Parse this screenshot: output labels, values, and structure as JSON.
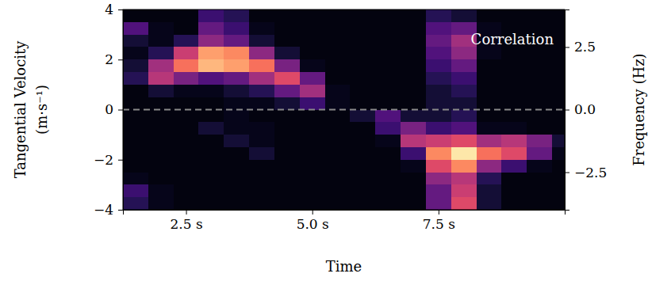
{
  "chart_data": {
    "type": "heatmap",
    "x_label": "Time",
    "y_label": "Tangential Velocity (m·s⁻¹)",
    "y2_label": "Frequency (Hz)",
    "annotations": [
      "Correlation"
    ],
    "color": "magma",
    "zlim": [
      0,
      1
    ],
    "xlim": [
      1.25,
      10
    ],
    "ylim": [
      -4,
      4
    ],
    "xticks": [
      {
        "value": 2.5,
        "label": "2.5 s"
      },
      {
        "value": 5,
        "label": "5.0 s"
      },
      {
        "value": 7.5,
        "label": "7.5 s"
      }
    ],
    "yticks": [
      {
        "value": -4,
        "label": "−4"
      },
      {
        "value": -2,
        "label": "−2"
      },
      0,
      2,
      4
    ],
    "y2lim": [
      -4,
      4
    ],
    "y2ticks": [
      {
        "value": -2.5,
        "label": "−2.5"
      },
      {
        "value": 0,
        "label": "0.0"
      },
      2.5
    ],
    "hlines": [
      0
    ],
    "x": [
      1.25,
      1.75,
      2.25,
      2.75,
      3.25,
      3.75,
      4.25,
      4.75,
      5.25,
      5.75,
      6.25,
      6.75,
      7.25,
      7.75,
      8.25,
      8.75,
      9.25,
      9.75,
      10
    ],
    "y": [
      4,
      3.5,
      3,
      2.5,
      2,
      1.5,
      1,
      0.5,
      0,
      -0.5,
      -1,
      -1.5,
      -2,
      -2.5,
      -3,
      -3.5,
      -4
    ],
    "cells": [
      [
        0.03,
        0.03,
        0.03,
        0.2,
        0.15,
        0.03,
        0.03,
        0.03,
        0.03,
        0.03,
        0.03,
        0.03,
        0.15,
        0.1,
        0.03,
        0.03,
        0.03,
        0.03
      ],
      [
        0.25,
        0.05,
        0.03,
        0.3,
        0.2,
        0.05,
        0.03,
        0.03,
        0.03,
        0.03,
        0.03,
        0.03,
        0.25,
        0.3,
        0.05,
        0.03,
        0.03,
        0.03
      ],
      [
        0.1,
        0.05,
        0.15,
        0.4,
        0.3,
        0.1,
        0.03,
        0.03,
        0.03,
        0.03,
        0.03,
        0.03,
        0.3,
        0.45,
        0.05,
        0.03,
        0.03,
        0.03
      ],
      [
        0.05,
        0.15,
        0.55,
        0.8,
        0.75,
        0.4,
        0.1,
        0.03,
        0.03,
        0.03,
        0.03,
        0.03,
        0.25,
        0.4,
        0.05,
        0.03,
        0.03,
        0.03
      ],
      [
        0.1,
        0.45,
        0.7,
        0.85,
        0.8,
        0.7,
        0.35,
        0.05,
        0.03,
        0.03,
        0.03,
        0.03,
        0.2,
        0.3,
        0.03,
        0.03,
        0.03,
        0.03
      ],
      [
        0.15,
        0.5,
        0.35,
        0.25,
        0.3,
        0.45,
        0.6,
        0.3,
        0.03,
        0.03,
        0.03,
        0.03,
        0.15,
        0.2,
        0.03,
        0.03,
        0.03,
        0.03
      ],
      [
        0.03,
        0.1,
        0.05,
        0.05,
        0.1,
        0.15,
        0.3,
        0.45,
        0.05,
        0.03,
        0.03,
        0.03,
        0.1,
        0.15,
        0.03,
        0.03,
        0.03,
        0.03
      ],
      [
        0.03,
        0.03,
        0.03,
        0.03,
        0.05,
        0.05,
        0.1,
        0.2,
        0.05,
        0.03,
        0.03,
        0.03,
        0.1,
        0.1,
        0.03,
        0.03,
        0.03,
        0.03
      ],
      [
        0.03,
        0.03,
        0.03,
        0.03,
        0.05,
        0.03,
        0.03,
        0.03,
        0.03,
        0.1,
        0.25,
        0.1,
        0.1,
        0.15,
        0.03,
        0.03,
        0.03,
        0.03
      ],
      [
        0.03,
        0.03,
        0.03,
        0.1,
        0.05,
        0.05,
        0.03,
        0.03,
        0.03,
        0.03,
        0.2,
        0.35,
        0.2,
        0.25,
        0.05,
        0.05,
        0.03,
        0.03
      ],
      [
        0.03,
        0.03,
        0.03,
        0.03,
        0.1,
        0.05,
        0.03,
        0.03,
        0.03,
        0.03,
        0.05,
        0.5,
        0.55,
        0.6,
        0.45,
        0.5,
        0.35,
        0.1
      ],
      [
        0.03,
        0.03,
        0.03,
        0.03,
        0.03,
        0.1,
        0.03,
        0.03,
        0.03,
        0.03,
        0.03,
        0.2,
        0.75,
        0.95,
        0.7,
        0.6,
        0.3,
        0.05
      ],
      [
        0.03,
        0.03,
        0.03,
        0.03,
        0.03,
        0.03,
        0.03,
        0.03,
        0.03,
        0.03,
        0.03,
        0.05,
        0.6,
        0.75,
        0.4,
        0.2,
        0.05,
        0.03
      ],
      [
        0.05,
        0.03,
        0.03,
        0.03,
        0.03,
        0.03,
        0.03,
        0.03,
        0.03,
        0.03,
        0.03,
        0.03,
        0.4,
        0.5,
        0.15,
        0.03,
        0.03,
        0.03
      ],
      [
        0.2,
        0.05,
        0.03,
        0.03,
        0.03,
        0.03,
        0.03,
        0.03,
        0.03,
        0.03,
        0.03,
        0.03,
        0.3,
        0.55,
        0.1,
        0.03,
        0.03,
        0.03
      ],
      [
        0.15,
        0.05,
        0.03,
        0.03,
        0.03,
        0.03,
        0.03,
        0.03,
        0.03,
        0.03,
        0.03,
        0.03,
        0.3,
        0.6,
        0.1,
        0.03,
        0.03,
        0.03
      ]
    ]
  }
}
